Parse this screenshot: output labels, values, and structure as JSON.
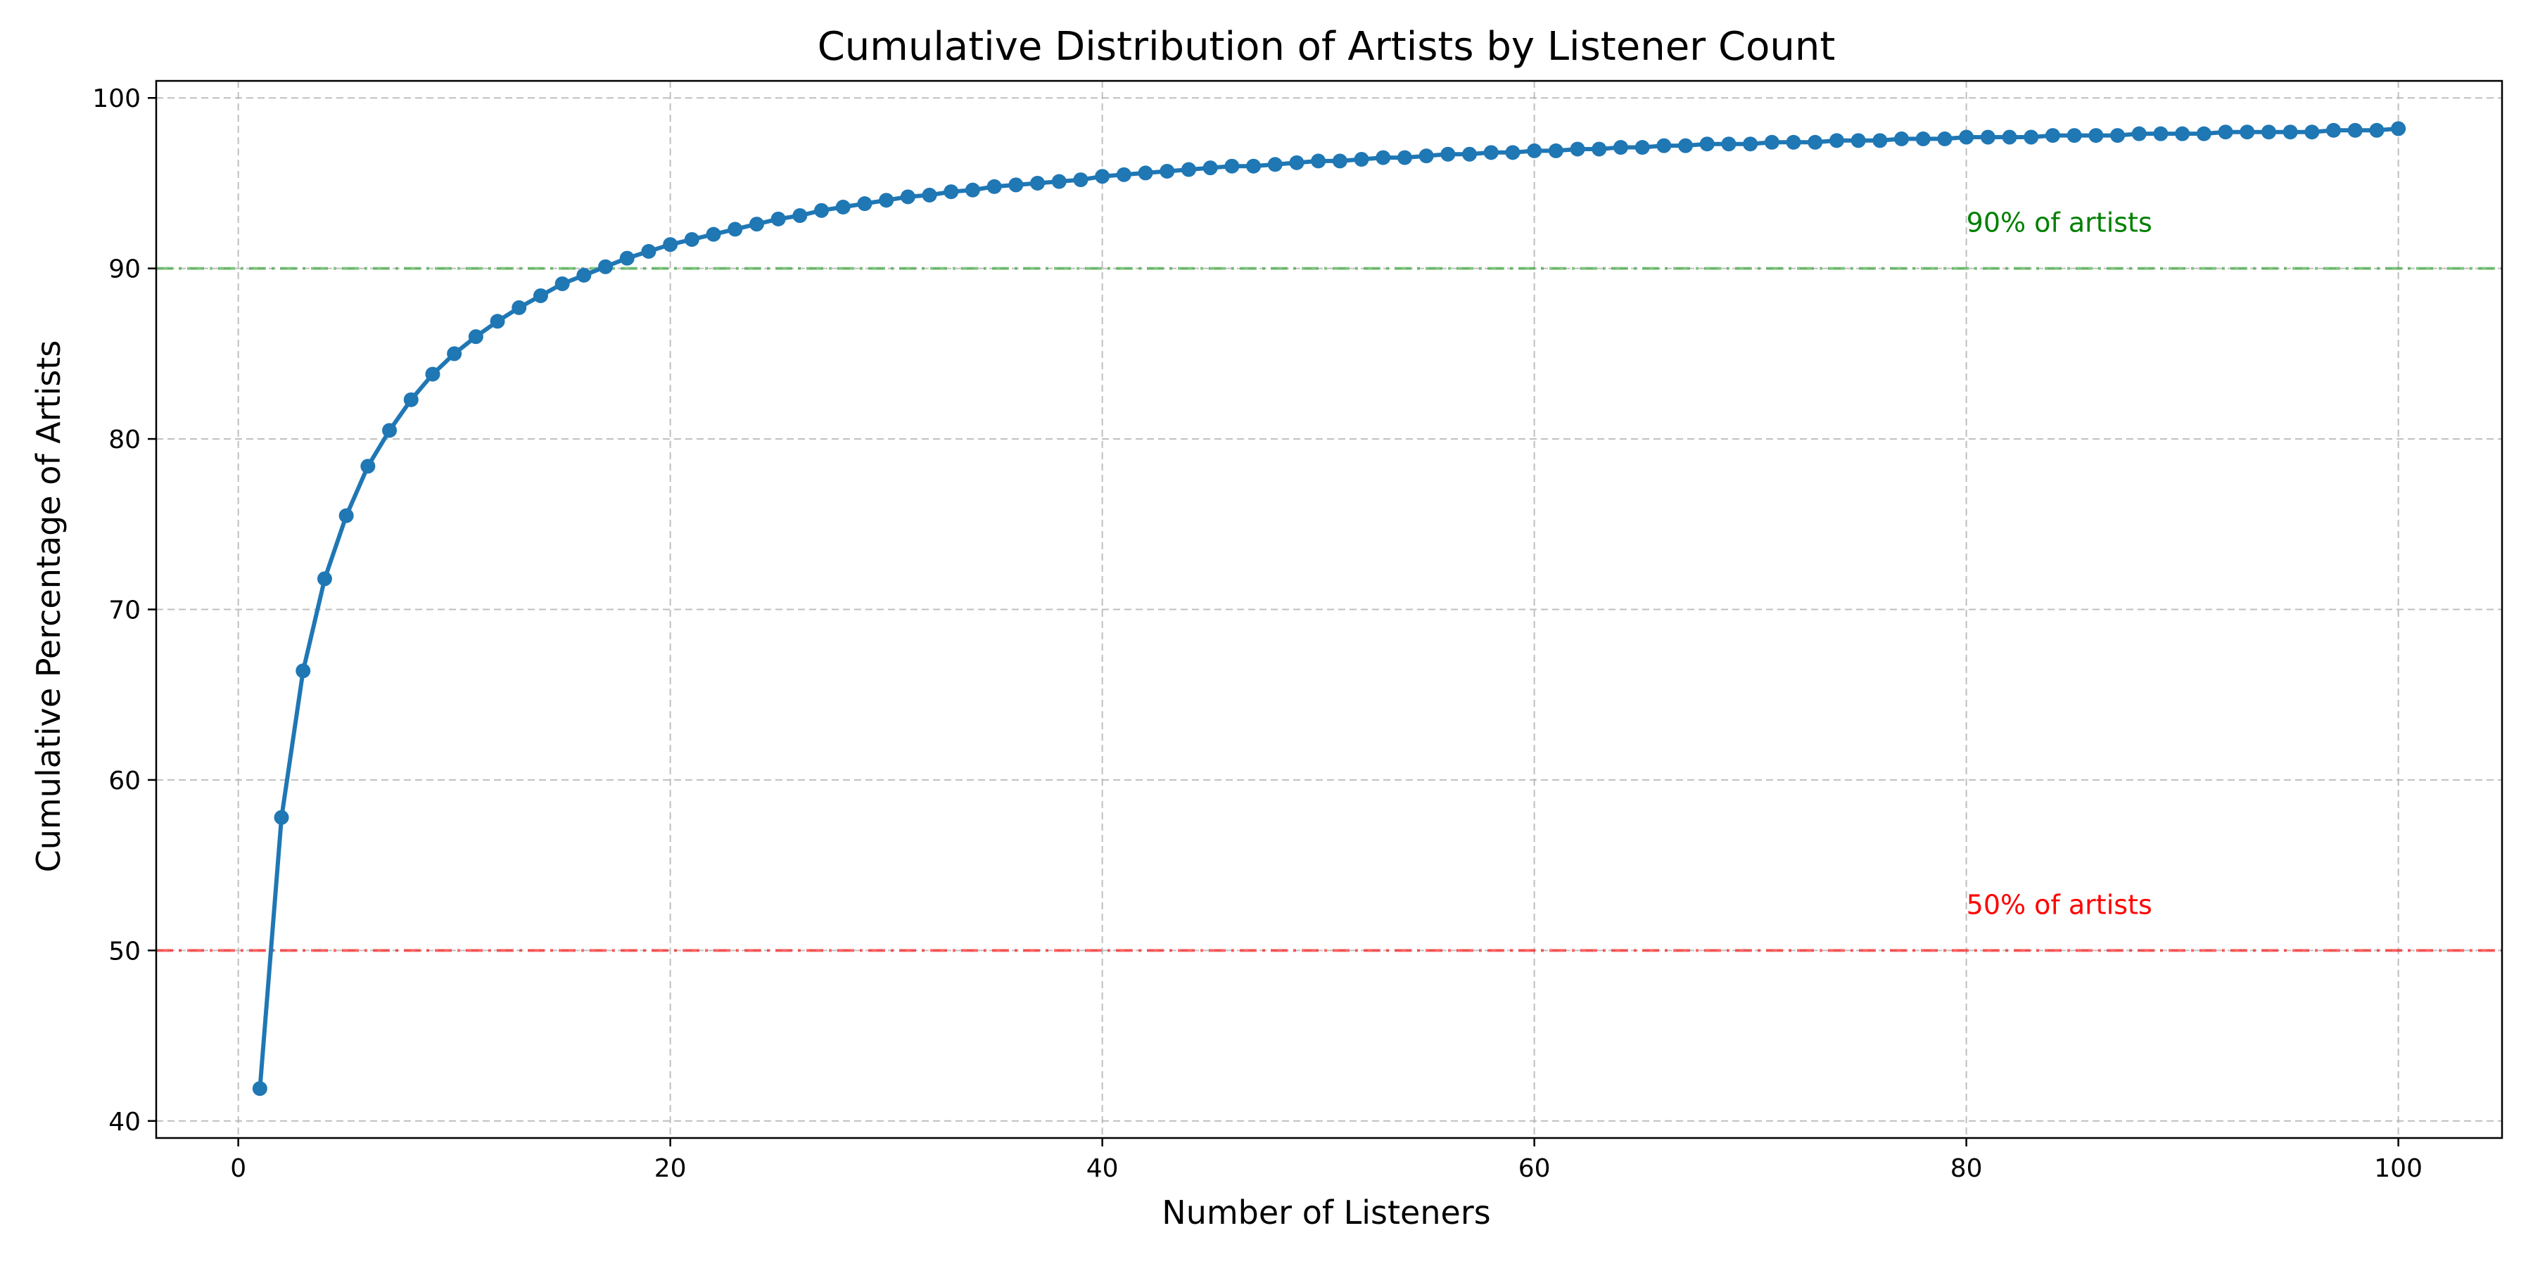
{
  "chart_data": {
    "type": "line",
    "title": "Cumulative Distribution of Artists by Listener Count",
    "xlabel": "Number of Listeners",
    "ylabel": "Cumulative Percentage of Artists",
    "xlim": [
      -3.8,
      104.8
    ],
    "ylim": [
      39.0,
      101.0
    ],
    "xticks": [
      0,
      20,
      40,
      60,
      80,
      100
    ],
    "yticks": [
      40,
      50,
      60,
      70,
      80,
      90,
      100
    ],
    "grid": true,
    "series": [
      {
        "color": "#1f77b4",
        "marker": "circle",
        "x": [
          1,
          2,
          3,
          4,
          5,
          6,
          7,
          8,
          9,
          10,
          11,
          12,
          13,
          14,
          15,
          16,
          17,
          18,
          19,
          20,
          21,
          22,
          23,
          24,
          25,
          26,
          27,
          28,
          29,
          30,
          31,
          32,
          33,
          34,
          35,
          36,
          37,
          38,
          39,
          40,
          41,
          42,
          43,
          44,
          45,
          46,
          47,
          48,
          49,
          50,
          51,
          52,
          53,
          54,
          55,
          56,
          57,
          58,
          59,
          60,
          61,
          62,
          63,
          64,
          65,
          66,
          67,
          68,
          69,
          70,
          71,
          72,
          73,
          74,
          75,
          76,
          77,
          78,
          79,
          80,
          81,
          82,
          83,
          84,
          85,
          86,
          87,
          88,
          89,
          90,
          91,
          92,
          93,
          94,
          95,
          96,
          97,
          98,
          99,
          100
        ],
        "values": [
          41.9,
          57.8,
          66.4,
          71.8,
          75.5,
          78.4,
          80.5,
          82.3,
          83.8,
          85.0,
          86.0,
          86.9,
          87.7,
          88.4,
          89.1,
          89.6,
          90.1,
          90.6,
          91.0,
          91.4,
          91.7,
          92.0,
          92.3,
          92.6,
          92.9,
          93.1,
          93.4,
          93.6,
          93.8,
          94.0,
          94.2,
          94.3,
          94.5,
          94.6,
          94.8,
          94.9,
          95.0,
          95.1,
          95.2,
          95.4,
          95.5,
          95.6,
          95.7,
          95.8,
          95.9,
          96.0,
          96.0,
          96.1,
          96.2,
          96.3,
          96.3,
          96.4,
          96.5,
          96.5,
          96.6,
          96.7,
          96.7,
          96.8,
          96.8,
          96.9,
          96.9,
          97.0,
          97.0,
          97.1,
          97.1,
          97.2,
          97.2,
          97.3,
          97.3,
          97.3,
          97.4,
          97.4,
          97.4,
          97.5,
          97.5,
          97.5,
          97.6,
          97.6,
          97.6,
          97.7,
          97.7,
          97.7,
          97.7,
          97.8,
          97.8,
          97.8,
          97.8,
          97.9,
          97.9,
          97.9,
          97.9,
          98.0,
          98.0,
          98.0,
          98.0,
          98.0,
          98.1,
          98.1,
          98.1,
          98.2
        ]
      }
    ],
    "reference_lines": [
      {
        "y": 90,
        "color": "#2ca02c",
        "label": "90% of artists",
        "label_color": "#008000",
        "label_x": 80
      },
      {
        "y": 50,
        "color": "#ff0000",
        "label": "50% of artists",
        "label_color": "#ff0000",
        "label_x": 80
      }
    ]
  }
}
